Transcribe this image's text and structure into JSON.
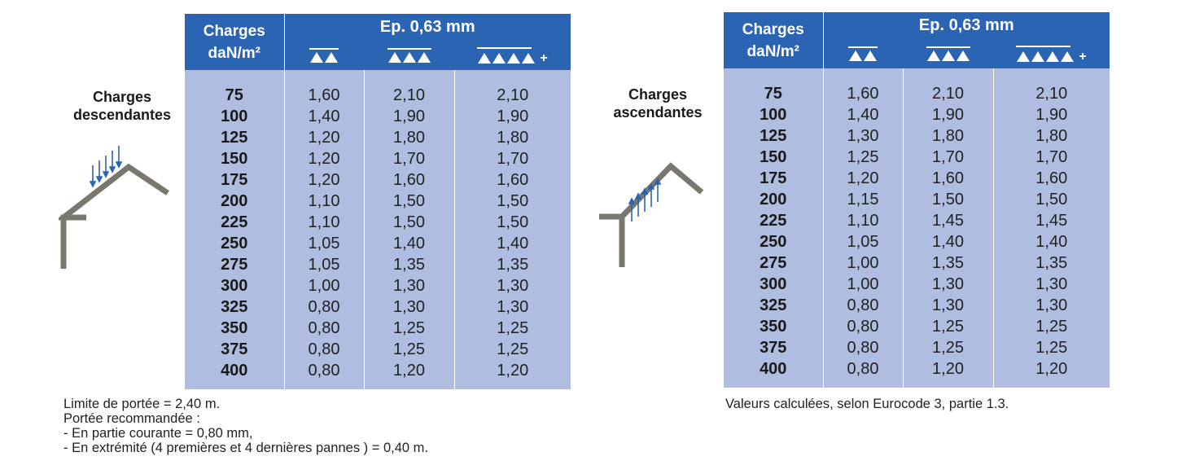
{
  "tables": [
    {
      "side_label_line1": "Charges",
      "side_label_line2": "descendantes",
      "header_charges_line1": "Charges",
      "header_charges_line2": "daN/m²",
      "header_thickness": "Ep. 0,63 mm",
      "symbols": [
        {
          "triangles": 2,
          "plus": ""
        },
        {
          "triangles": 3,
          "plus": ""
        },
        {
          "triangles": 4,
          "plus": "+"
        }
      ],
      "rows": [
        {
          "load": "75",
          "v1": "1,60",
          "v2": "2,10",
          "v3": "2,10"
        },
        {
          "load": "100",
          "v1": "1,40",
          "v2": "1,90",
          "v3": "1,90"
        },
        {
          "load": "125",
          "v1": "1,20",
          "v2": "1,80",
          "v3": "1,80"
        },
        {
          "load": "150",
          "v1": "1,20",
          "v2": "1,70",
          "v3": "1,70"
        },
        {
          "load": "175",
          "v1": "1,20",
          "v2": "1,60",
          "v3": "1,60"
        },
        {
          "load": "200",
          "v1": "1,10",
          "v2": "1,50",
          "v3": "1,50"
        },
        {
          "load": "225",
          "v1": "1,10",
          "v2": "1,50",
          "v3": "1,50"
        },
        {
          "load": "250",
          "v1": "1,05",
          "v2": "1,40",
          "v3": "1,40"
        },
        {
          "load": "275",
          "v1": "1,05",
          "v2": "1,35",
          "v3": "1,35"
        },
        {
          "load": "300",
          "v1": "1,00",
          "v2": "1,30",
          "v3": "1,30"
        },
        {
          "load": "325",
          "v1": "0,80",
          "v2": "1,30",
          "v3": "1,30"
        },
        {
          "load": "350",
          "v1": "0,80",
          "v2": "1,25",
          "v3": "1,25"
        },
        {
          "load": "375",
          "v1": "0,80",
          "v2": "1,25",
          "v3": "1,25"
        },
        {
          "load": "400",
          "v1": "0,80",
          "v2": "1,20",
          "v3": "1,20"
        }
      ]
    },
    {
      "side_label_line1": "Charges",
      "side_label_line2": "ascendantes",
      "header_charges_line1": "Charges",
      "header_charges_line2": "daN/m²",
      "header_thickness": "Ep. 0,63 mm",
      "symbols": [
        {
          "triangles": 2,
          "plus": ""
        },
        {
          "triangles": 3,
          "plus": ""
        },
        {
          "triangles": 4,
          "plus": "+"
        }
      ],
      "rows": [
        {
          "load": "75",
          "v1": "1,60",
          "v2": "2,10",
          "v3": "2,10"
        },
        {
          "load": "100",
          "v1": "1,40",
          "v2": "1,90",
          "v3": "1,90"
        },
        {
          "load": "125",
          "v1": "1,30",
          "v2": "1,80",
          "v3": "1,80"
        },
        {
          "load": "150",
          "v1": "1,25",
          "v2": "1,70",
          "v3": "1,70"
        },
        {
          "load": "175",
          "v1": "1,20",
          "v2": "1,60",
          "v3": "1,60"
        },
        {
          "load": "200",
          "v1": "1,15",
          "v2": "1,50",
          "v3": "1,50"
        },
        {
          "load": "225",
          "v1": "1,10",
          "v2": "1,45",
          "v3": "1,45"
        },
        {
          "load": "250",
          "v1": "1,05",
          "v2": "1,40",
          "v3": "1,40"
        },
        {
          "load": "275",
          "v1": "1,00",
          "v2": "1,35",
          "v3": "1,35"
        },
        {
          "load": "300",
          "v1": "1,00",
          "v2": "1,30",
          "v3": "1,30"
        },
        {
          "load": "325",
          "v1": "0,80",
          "v2": "1,30",
          "v3": "1,30"
        },
        {
          "load": "350",
          "v1": "0,80",
          "v2": "1,25",
          "v3": "1,25"
        },
        {
          "load": "375",
          "v1": "0,80",
          "v2": "1,25",
          "v3": "1,25"
        },
        {
          "load": "400",
          "v1": "0,80",
          "v2": "1,20",
          "v3": "1,20"
        }
      ]
    }
  ],
  "notes_left": [
    "Limite de portée = 2,40 m.",
    "Portée recommandée :",
    "- En partie courante = 0,80 mm,",
    "- En extrémité (4 premières et 4 dernières pannes ) = 0,40 m."
  ],
  "note_right": "Valeurs calculées, selon Eurocode 3, partie 1.3.",
  "icons": {
    "left": "roof-downward-load-icon",
    "right": "roof-upward-load-icon"
  },
  "colors": {
    "header_bg": "#2b64b3",
    "body_bg": "#aebde0",
    "roof": "#7a776e",
    "arrow": "#2b64b3"
  }
}
